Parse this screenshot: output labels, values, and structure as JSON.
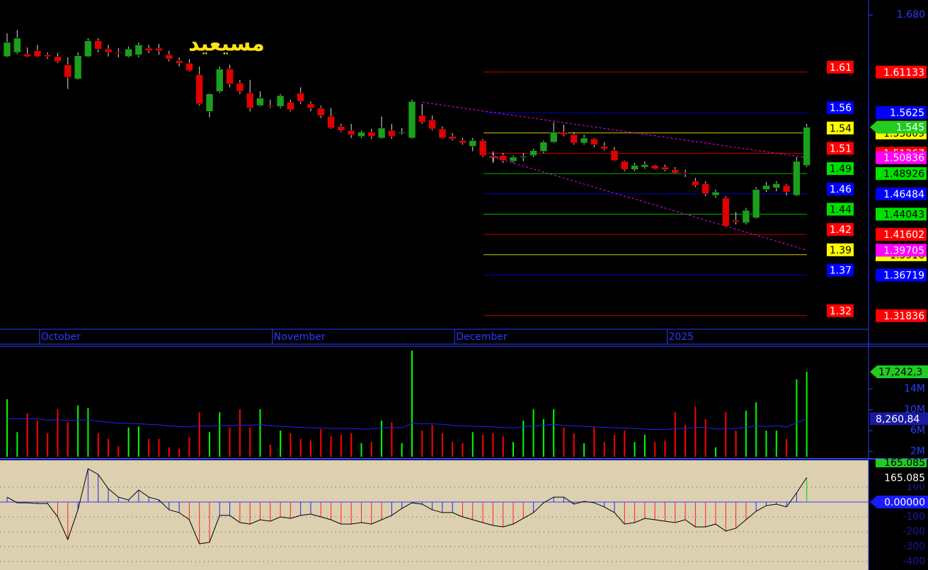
{
  "chart_data": [
    {
      "type": "candlestick",
      "title": "مسيعيد",
      "up_color": "#1aa01a",
      "down_color": "#e00000",
      "ylim": [
        1.302,
        1.698
      ],
      "yticks": [
        {
          "value": 1.68,
          "label": "1.680"
        }
      ],
      "xticks": [
        {
          "value": 3,
          "label": "October"
        },
        {
          "value": 26,
          "label": "November"
        },
        {
          "value": 44,
          "label": "December"
        },
        {
          "value": 65,
          "label": "2025"
        }
      ],
      "open": [
        1.63,
        1.635,
        1.633,
        1.637,
        1.632,
        1.63,
        1.62,
        1.603,
        1.63,
        1.649,
        1.639,
        1.635,
        1.63,
        1.632,
        1.64,
        1.64,
        1.632,
        1.625,
        1.622,
        1.608,
        1.564,
        1.588,
        1.615,
        1.598,
        1.586,
        1.571,
        1.571,
        1.57,
        1.575,
        1.586,
        1.573,
        1.568,
        1.558,
        1.546,
        1.541,
        1.534,
        1.539,
        1.532,
        1.541,
        1.538,
        1.532,
        1.559,
        1.554,
        1.543,
        1.534,
        1.529,
        1.522,
        1.529,
        1.511,
        1.511,
        1.504,
        1.509,
        1.511,
        1.516,
        1.527,
        1.539,
        1.536,
        1.526,
        1.531,
        1.522,
        1.517,
        1.504,
        1.494,
        1.497,
        1.499,
        1.497,
        1.494,
        1.49,
        1.48,
        1.477,
        1.463,
        1.46,
        1.433,
        1.43,
        1.436,
        1.47,
        1.472,
        1.475,
        1.463,
        1.499
      ],
      "high": [
        1.658,
        1.662,
        1.641,
        1.644,
        1.635,
        1.634,
        1.629,
        1.635,
        1.652,
        1.652,
        1.644,
        1.64,
        1.642,
        1.647,
        1.644,
        1.645,
        1.637,
        1.629,
        1.627,
        1.618,
        1.586,
        1.618,
        1.62,
        1.602,
        1.602,
        1.588,
        1.578,
        1.585,
        1.578,
        1.593,
        1.576,
        1.571,
        1.568,
        1.549,
        1.549,
        1.541,
        1.543,
        1.558,
        1.549,
        1.544,
        1.578,
        1.573,
        1.559,
        1.546,
        1.538,
        1.532,
        1.532,
        1.531,
        1.516,
        1.514,
        1.511,
        1.514,
        1.519,
        1.529,
        1.551,
        1.548,
        1.539,
        1.536,
        1.532,
        1.527,
        1.521,
        1.505,
        1.502,
        1.504,
        1.5,
        1.5,
        1.497,
        1.494,
        1.484,
        1.48,
        1.47,
        1.462,
        1.443,
        1.448,
        1.473,
        1.479,
        1.48,
        1.477,
        1.509,
        1.549
      ],
      "low": [
        1.629,
        1.633,
        1.629,
        1.629,
        1.627,
        1.622,
        1.591,
        1.602,
        1.629,
        1.635,
        1.63,
        1.629,
        1.629,
        1.629,
        1.634,
        1.632,
        1.624,
        1.618,
        1.612,
        1.571,
        1.557,
        1.586,
        1.593,
        1.585,
        1.564,
        1.57,
        1.568,
        1.568,
        1.564,
        1.573,
        1.564,
        1.556,
        1.543,
        1.539,
        1.532,
        1.532,
        1.531,
        1.531,
        1.531,
        1.536,
        1.531,
        1.549,
        1.541,
        1.531,
        1.529,
        1.524,
        1.516,
        1.509,
        1.502,
        1.502,
        1.502,
        1.504,
        1.509,
        1.514,
        1.526,
        1.534,
        1.524,
        1.524,
        1.521,
        1.517,
        1.504,
        1.492,
        1.492,
        1.495,
        1.494,
        1.492,
        1.489,
        1.485,
        1.473,
        1.462,
        1.46,
        1.425,
        1.428,
        1.428,
        1.435,
        1.467,
        1.468,
        1.463,
        1.462,
        1.497
      ],
      "close": [
        1.647,
        1.652,
        1.63,
        1.63,
        1.63,
        1.624,
        1.605,
        1.631,
        1.649,
        1.639,
        1.635,
        1.634,
        1.639,
        1.644,
        1.637,
        1.637,
        1.627,
        1.622,
        1.613,
        1.573,
        1.585,
        1.615,
        1.597,
        1.588,
        1.568,
        1.58,
        1.57,
        1.583,
        1.566,
        1.576,
        1.568,
        1.559,
        1.544,
        1.541,
        1.536,
        1.539,
        1.534,
        1.544,
        1.534,
        1.539,
        1.576,
        1.551,
        1.543,
        1.532,
        1.531,
        1.526,
        1.529,
        1.511,
        1.509,
        1.505,
        1.509,
        1.51,
        1.517,
        1.527,
        1.539,
        1.536,
        1.526,
        1.532,
        1.524,
        1.519,
        1.505,
        1.494,
        1.499,
        1.5,
        1.495,
        1.494,
        1.49,
        1.489,
        1.475,
        1.465,
        1.467,
        1.426,
        1.431,
        1.445,
        1.47,
        1.475,
        1.477,
        1.467,
        1.504,
        1.545
      ],
      "levels": [
        {
          "value": 1.61133,
          "label": "1.61",
          "color": "#ff0000"
        },
        {
          "value": 1.5625,
          "label": "1.56",
          "color": "#0000ff"
        },
        {
          "value": 1.53809,
          "label": "1.54",
          "color": "#ffff00"
        },
        {
          "value": 1.51367,
          "label": "1.51",
          "color": "#ff0000"
        },
        {
          "value": 1.48926,
          "label": "1.49",
          "color": "#00e000"
        },
        {
          "value": 1.46484,
          "label": "1.46",
          "color": "#0000ff"
        },
        {
          "value": 1.44043,
          "label": "1.44",
          "color": "#00e000"
        },
        {
          "value": 1.41602,
          "label": "1.42",
          "color": "#ff0000"
        },
        {
          "value": 1.3916,
          "label": "1.39",
          "color": "#ffff00"
        },
        {
          "value": 1.36719,
          "label": "1.37",
          "color": "#0000ff"
        },
        {
          "value": 1.31836,
          "label": "1.32",
          "color": "#ff0000"
        }
      ],
      "trendlines": [
        {
          "values": [
            1.575,
            1.50836
          ],
          "color": "#ff00ff"
        },
        {
          "values": [
            1.509,
            1.39705
          ],
          "color": "#ff00ff"
        }
      ]
    },
    {
      "type": "bar",
      "up_color": "#00ff00",
      "down_color": "#ff0000",
      "average_color": "#2020ff",
      "ylim": [
        1,
        22
      ],
      "yticks": [
        {
          "value": 14,
          "label": "14M"
        },
        {
          "value": 10,
          "label": "10M"
        },
        {
          "value": 6,
          "label": "6M"
        },
        {
          "value": 2,
          "label": "2M"
        }
      ],
      "values": [
        12.0,
        5.7,
        9.3,
        7.9,
        5.5,
        10.1,
        7.6,
        10.8,
        10.3,
        5.5,
        4.4,
        3.0,
        6.6,
        6.8,
        4.4,
        4.4,
        2.8,
        2.5,
        4.7,
        9.5,
        5.7,
        9.5,
        6.6,
        10.1,
        6.6,
        10.1,
        3.3,
        6.0,
        5.5,
        4.4,
        4.1,
        6.3,
        4.9,
        5.2,
        5.5,
        3.6,
        3.8,
        7.9,
        7.6,
        3.6,
        21.3,
        6.0,
        7.1,
        5.5,
        3.8,
        3.6,
        5.7,
        5.2,
        5.5,
        4.9,
        3.8,
        7.9,
        10.1,
        8.2,
        10.1,
        6.6,
        5.5,
        3.6,
        6.6,
        3.8,
        5.2,
        6.0,
        3.8,
        5.2,
        3.8,
        4.1,
        9.5,
        7.1,
        10.6,
        8.2,
        2.8,
        9.5,
        6.0,
        9.8,
        11.4,
        6.0,
        6.0,
        4.4,
        15.8,
        17.2423
      ],
      "average": [
        8.3,
        8.2,
        8.3,
        8.2,
        8.0,
        8.1,
        7.9,
        8.0,
        8.1,
        7.8,
        7.6,
        7.4,
        7.4,
        7.3,
        7.2,
        7.1,
        6.9,
        6.8,
        6.7,
        6.9,
        6.8,
        7.0,
        6.9,
        7.1,
        7.0,
        7.2,
        6.9,
        6.8,
        6.7,
        6.6,
        6.5,
        6.5,
        6.4,
        6.4,
        6.4,
        6.3,
        6.3,
        6.5,
        6.6,
        6.5,
        7.4,
        7.3,
        7.3,
        7.2,
        7.0,
        6.9,
        6.8,
        6.8,
        6.7,
        6.6,
        6.5,
        6.7,
        6.9,
        7.0,
        7.2,
        7.0,
        6.9,
        6.8,
        6.7,
        6.6,
        6.5,
        6.5,
        6.4,
        6.3,
        6.2,
        6.2,
        6.4,
        6.4,
        6.6,
        6.6,
        6.3,
        6.4,
        6.4,
        6.6,
        6.9,
        6.8,
        6.9,
        6.7,
        7.5,
        8.26084
      ],
      "last_label": "17,242,3",
      "average_label": "8,260,84"
    },
    {
      "type": "line",
      "color": "#000000",
      "up_color": "#2020ff",
      "down_color": "#ff2020",
      "last_color": "#00d000",
      "background": "#ddd0b0",
      "ylim": [
        -457,
        281
      ],
      "yticks": [
        100,
        -100,
        -200,
        -300,
        -400
      ],
      "zero_label": {
        "value": 0,
        "label": "0.00000"
      },
      "values": [
        33,
        -5,
        -5,
        -10,
        -10,
        -100,
        -252,
        -52,
        224,
        186,
        90,
        33,
        14,
        81,
        33,
        14,
        -52,
        -71,
        -119,
        -281,
        -271,
        -90,
        -90,
        -138,
        -148,
        -119,
        -129,
        -100,
        -110,
        -90,
        -81,
        -100,
        -119,
        -148,
        -148,
        -138,
        -148,
        -119,
        -90,
        -43,
        -5,
        -14,
        -52,
        -71,
        -71,
        -100,
        -119,
        -138,
        -157,
        -167,
        -148,
        -110,
        -71,
        -5,
        33,
        33,
        -14,
        5,
        -5,
        -33,
        -71,
        -148,
        -138,
        -110,
        -119,
        -129,
        -138,
        -119,
        -167,
        -167,
        -148,
        -195,
        -176,
        -119,
        -62,
        -24,
        -14,
        -33,
        62,
        165.085
      ]
    }
  ]
}
